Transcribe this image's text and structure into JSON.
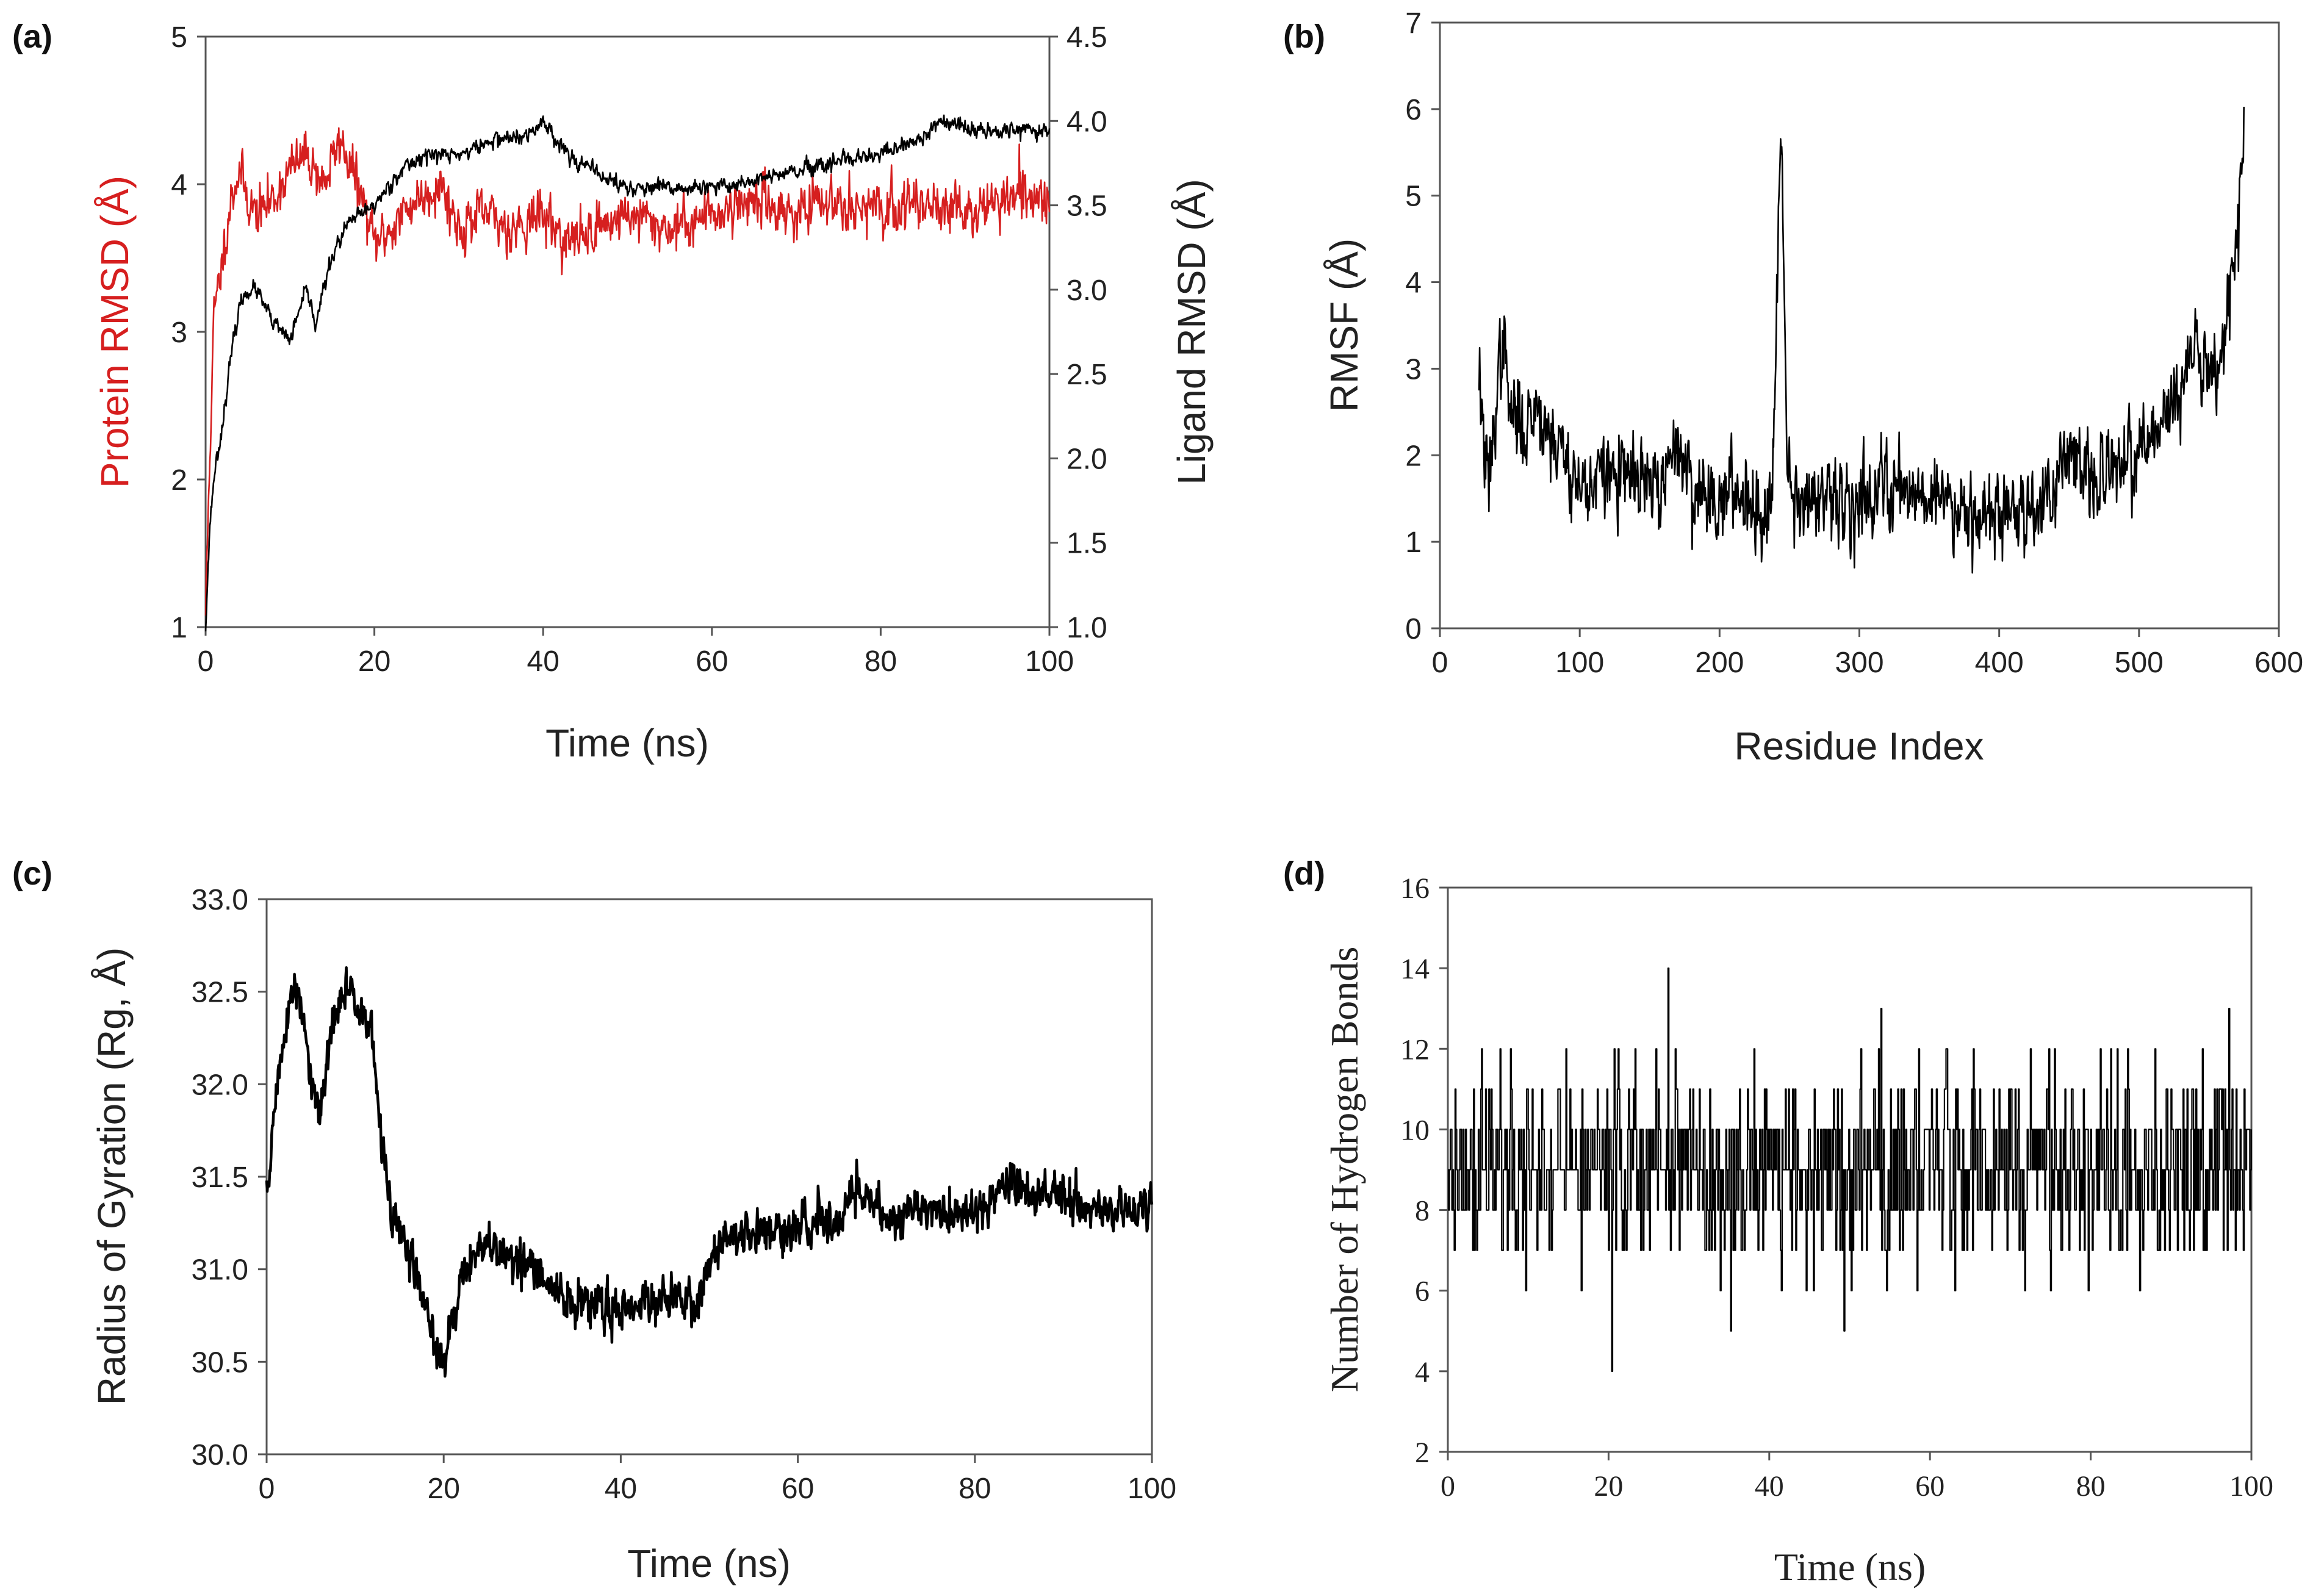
{
  "colors": {
    "protein": "#d61f1f",
    "ligand": "#000000",
    "black": "#000000"
  },
  "chart_data": [
    {
      "id": "a",
      "panel_label": "(a)",
      "type": "line",
      "xlabel": "Time (ns)",
      "ylabel": "Protein RMSD (Å)",
      "y2label": "Ligand RMSD (Å)",
      "xlim": [
        0,
        100
      ],
      "ylim": [
        1,
        5
      ],
      "y2lim": [
        1.0,
        4.5
      ],
      "xticks": [
        "0",
        "20",
        "40",
        "60",
        "80",
        "100"
      ],
      "yticks": [
        "1",
        "2",
        "3",
        "4",
        "5"
      ],
      "y2ticks": [
        "1.0",
        "1.5",
        "2.0",
        "2.5",
        "3.0",
        "3.5",
        "4.0",
        "4.5"
      ],
      "grid": false,
      "series": [
        {
          "axis": "left",
          "color": "#d61f1f",
          "noise": 0.12,
          "seed": 11,
          "x": [
            0,
            0.5,
            1,
            2,
            3,
            4,
            5,
            6,
            8,
            10,
            12,
            14,
            16,
            18,
            20,
            22,
            25,
            28,
            30,
            33,
            36,
            40,
            43,
            46,
            50,
            55,
            60,
            65,
            70,
            75,
            80,
            85,
            90,
            95,
            100
          ],
          "values": [
            1.1,
            2.2,
            3.1,
            3.5,
            3.9,
            4.1,
            3.9,
            3.8,
            3.9,
            4.1,
            4.2,
            4.0,
            4.3,
            4.0,
            3.6,
            3.7,
            3.9,
            4.0,
            3.7,
            3.8,
            3.7,
            3.8,
            3.6,
            3.7,
            3.8,
            3.7,
            3.8,
            3.9,
            3.8,
            3.9,
            3.8,
            3.9,
            3.8,
            3.9,
            3.9
          ]
        },
        {
          "axis": "right",
          "color": "#000000",
          "noise": 0.035,
          "seed": 23,
          "x": [
            0,
            0.5,
            1,
            2,
            3,
            4,
            5,
            6,
            8,
            10,
            12,
            13,
            15,
            17,
            20,
            23,
            26,
            30,
            35,
            38,
            40,
            43,
            46,
            50,
            55,
            60,
            65,
            70,
            75,
            80,
            85,
            87,
            90,
            95,
            100
          ],
          "values": [
            1.0,
            1.6,
            1.9,
            2.2,
            2.6,
            2.9,
            3.0,
            3.0,
            2.8,
            2.7,
            3.0,
            2.8,
            3.2,
            3.4,
            3.5,
            3.7,
            3.8,
            3.8,
            3.9,
            3.9,
            4.0,
            3.8,
            3.7,
            3.6,
            3.6,
            3.6,
            3.65,
            3.7,
            3.75,
            3.8,
            3.9,
            4.0,
            3.95,
            3.95,
            3.95
          ]
        }
      ]
    },
    {
      "id": "b",
      "panel_label": "(b)",
      "type": "line",
      "xlabel": "Residue Index",
      "ylabel": "RMSF (Å)",
      "xlim": [
        0,
        600
      ],
      "ylim": [
        0,
        7
      ],
      "xticks": [
        "0",
        "100",
        "200",
        "300",
        "400",
        "500",
        "600"
      ],
      "yticks": [
        "0",
        "1",
        "2",
        "3",
        "4",
        "5",
        "6",
        "7"
      ],
      "grid": false,
      "series": [
        {
          "axis": "left",
          "color": "#000000",
          "noise": 0.35,
          "seed": 37,
          "x": [
            28,
            32,
            35,
            40,
            45,
            50,
            60,
            70,
            80,
            90,
            100,
            110,
            120,
            140,
            160,
            170,
            180,
            200,
            220,
            232,
            238,
            240,
            243,
            245,
            248,
            252,
            260,
            280,
            300,
            320,
            340,
            360,
            380,
            400,
            420,
            440,
            455,
            460,
            480,
            500,
            520,
            540,
            555,
            565,
            570,
            573,
            575
          ],
          "values": [
            3.0,
            2.0,
            1.6,
            2.6,
            3.4,
            2.5,
            2.3,
            2.6,
            2.2,
            2.0,
            1.6,
            1.7,
            1.8,
            1.7,
            1.6,
            2.2,
            1.6,
            1.5,
            1.6,
            1.2,
            2.0,
            3.0,
            5.3,
            5.6,
            2.0,
            1.6,
            1.5,
            1.4,
            1.5,
            1.7,
            1.6,
            1.5,
            1.4,
            1.3,
            1.4,
            1.6,
            2.3,
            1.6,
            1.8,
            2.0,
            2.4,
            3.2,
            3.0,
            3.8,
            4.5,
            5.3,
            5.7
          ]
        }
      ]
    },
    {
      "id": "c",
      "panel_label": "(c)",
      "type": "line",
      "xlabel": "Time (ns)",
      "ylabel": "Radius of Gyration (Rg, Å)",
      "xlim": [
        0,
        100
      ],
      "ylim": [
        30.0,
        33.0
      ],
      "xticks": [
        "0",
        "20",
        "40",
        "60",
        "80",
        "100"
      ],
      "yticks": [
        "30.0",
        "30.5",
        "31.0",
        "31.5",
        "32.0",
        "32.5",
        "33.0"
      ],
      "grid": false,
      "series": [
        {
          "axis": "left",
          "color": "#000000",
          "noise": 0.09,
          "seed": 51,
          "x": [
            0,
            1,
            2,
            3,
            4,
            5,
            6,
            7,
            8,
            9,
            10,
            11,
            12,
            13,
            14,
            16,
            18,
            19,
            20,
            21,
            22,
            24,
            27,
            30,
            33,
            36,
            40,
            44,
            48,
            50,
            52,
            55,
            60,
            65,
            67,
            70,
            75,
            80,
            84,
            86,
            90,
            95,
            100
          ],
          "values": [
            31.4,
            31.9,
            32.3,
            32.5,
            32.4,
            32.0,
            31.8,
            32.2,
            32.4,
            32.5,
            32.5,
            32.4,
            32.2,
            31.7,
            31.3,
            31.1,
            30.8,
            30.6,
            30.45,
            30.7,
            31.0,
            31.1,
            31.1,
            31.0,
            30.85,
            30.8,
            30.8,
            30.85,
            30.8,
            31.0,
            31.2,
            31.2,
            31.2,
            31.3,
            31.45,
            31.3,
            31.3,
            31.3,
            31.5,
            31.4,
            31.4,
            31.3,
            31.35
          ]
        }
      ]
    },
    {
      "id": "d",
      "panel_label": "(d)",
      "type": "line",
      "xlabel": "Time (ns)",
      "ylabel": "Number of Hydrogen Bonds",
      "xlim": [
        0,
        100
      ],
      "ylim": [
        2,
        16
      ],
      "xticks": [
        "0",
        "20",
        "40",
        "60",
        "80",
        "100"
      ],
      "yticks": [
        "2",
        "4",
        "6",
        "8",
        "10",
        "12",
        "14",
        "16"
      ],
      "grid": false,
      "series": [
        {
          "axis": "left",
          "color": "#000000",
          "discrete": true,
          "step": 0.1,
          "min": 4,
          "max": 14,
          "mean": 9,
          "spread": 1.3,
          "seed": 77
        }
      ]
    }
  ]
}
